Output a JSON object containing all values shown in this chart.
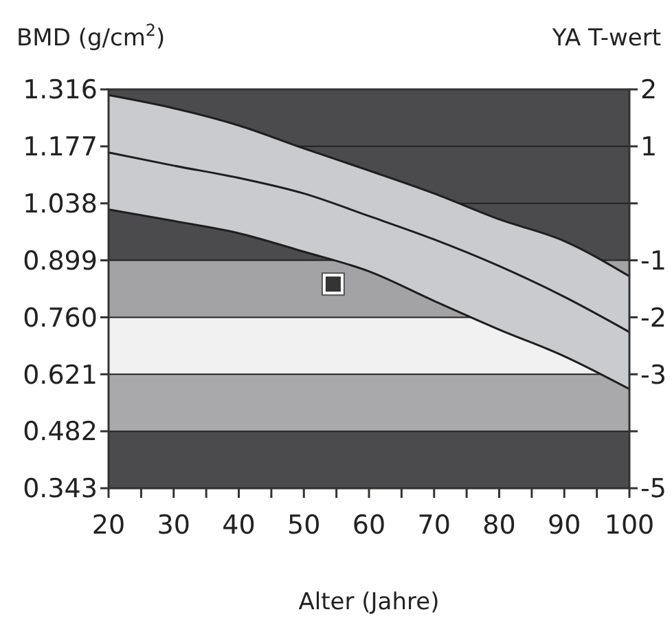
{
  "chart_data": {
    "type": "line",
    "ylabel": "BMD (g/cm$^{2}$)",
    "y2label": "YA T-wert",
    "xlabel": "Alter (Jahre)",
    "x": [
      20,
      30,
      40,
      50,
      60,
      70,
      80,
      90,
      100
    ],
    "xlim": [
      20,
      100
    ],
    "xticks": [
      20,
      {
        "value": 25,
        "label": null
      },
      30,
      {
        "value": 35,
        "label": null
      },
      40,
      {
        "value": 45,
        "label": null
      },
      50,
      {
        "value": 55,
        "label": null
      },
      60,
      {
        "value": 65,
        "label": null
      },
      70,
      {
        "value": 75,
        "label": null
      },
      80,
      {
        "value": 85,
        "label": null
      },
      90,
      {
        "value": 95,
        "label": null
      },
      100
    ],
    "ylim": [
      0.343,
      1.316
    ],
    "yticks": [
      {
        "value": 0.343,
        "label": "0.343"
      },
      {
        "value": 0.482,
        "label": "0.482"
      },
      {
        "value": 0.621,
        "label": "0.621"
      },
      {
        "value": 0.76,
        "label": "0.760"
      },
      {
        "value": 0.899,
        "label": "0.899"
      },
      {
        "value": 1.038,
        "label": "1.038"
      },
      {
        "value": 1.177,
        "label": "1.177"
      },
      {
        "value": 1.316,
        "label": "1.316"
      }
    ],
    "y2lim": [
      -5,
      2
    ],
    "y2ticks": [
      2,
      1,
      {
        "value": 0,
        "label": null
      },
      -1,
      -2,
      -3,
      {
        "value": -4,
        "label": null
      },
      -5
    ],
    "bands": [
      {
        "axis": "y",
        "from": 0.343,
        "to": 0.482,
        "color": "#4b4b4d"
      },
      {
        "axis": "y",
        "from": 0.482,
        "to": 0.621,
        "color": "#a9a9ab"
      },
      {
        "axis": "y",
        "from": 0.621,
        "to": 0.76,
        "color": "#f1f1f1"
      },
      {
        "axis": "y",
        "from": 0.76,
        "to": 0.899,
        "color": "#a3a3a5"
      },
      {
        "axis": "y",
        "from": 0.899,
        "to": 1.316,
        "color": "#4b4b4d"
      }
    ],
    "series": [
      {
        "color": "#1e1e1e",
        "values": [
          1.302,
          1.27,
          1.228,
          1.172,
          1.118,
          1.062,
          0.999,
          0.946,
          0.86
        ]
      },
      {
        "color": "#1e1e1e",
        "values": [
          1.023,
          0.995,
          0.965,
          0.92,
          0.872,
          0.8,
          0.73,
          0.665,
          0.585
        ]
      },
      {
        "color": "#1e1e1e",
        "values": [
          1.162,
          1.13,
          1.1,
          1.062,
          1.007,
          0.95,
          0.885,
          0.81,
          0.724
        ],
        "lower": [
          1.023,
          0.995,
          0.965,
          0.92,
          0.872,
          0.8,
          0.73,
          0.665,
          0.585
        ],
        "upper": [
          1.302,
          1.27,
          1.228,
          1.172,
          1.118,
          1.062,
          0.999,
          0.946,
          0.86
        ]
      },
      {
        "type": "scatter",
        "color": "#333333",
        "x": [
          54.5
        ],
        "values": [
          0.841
        ],
        "marker": "square"
      }
    ],
    "grid": "y"
  }
}
